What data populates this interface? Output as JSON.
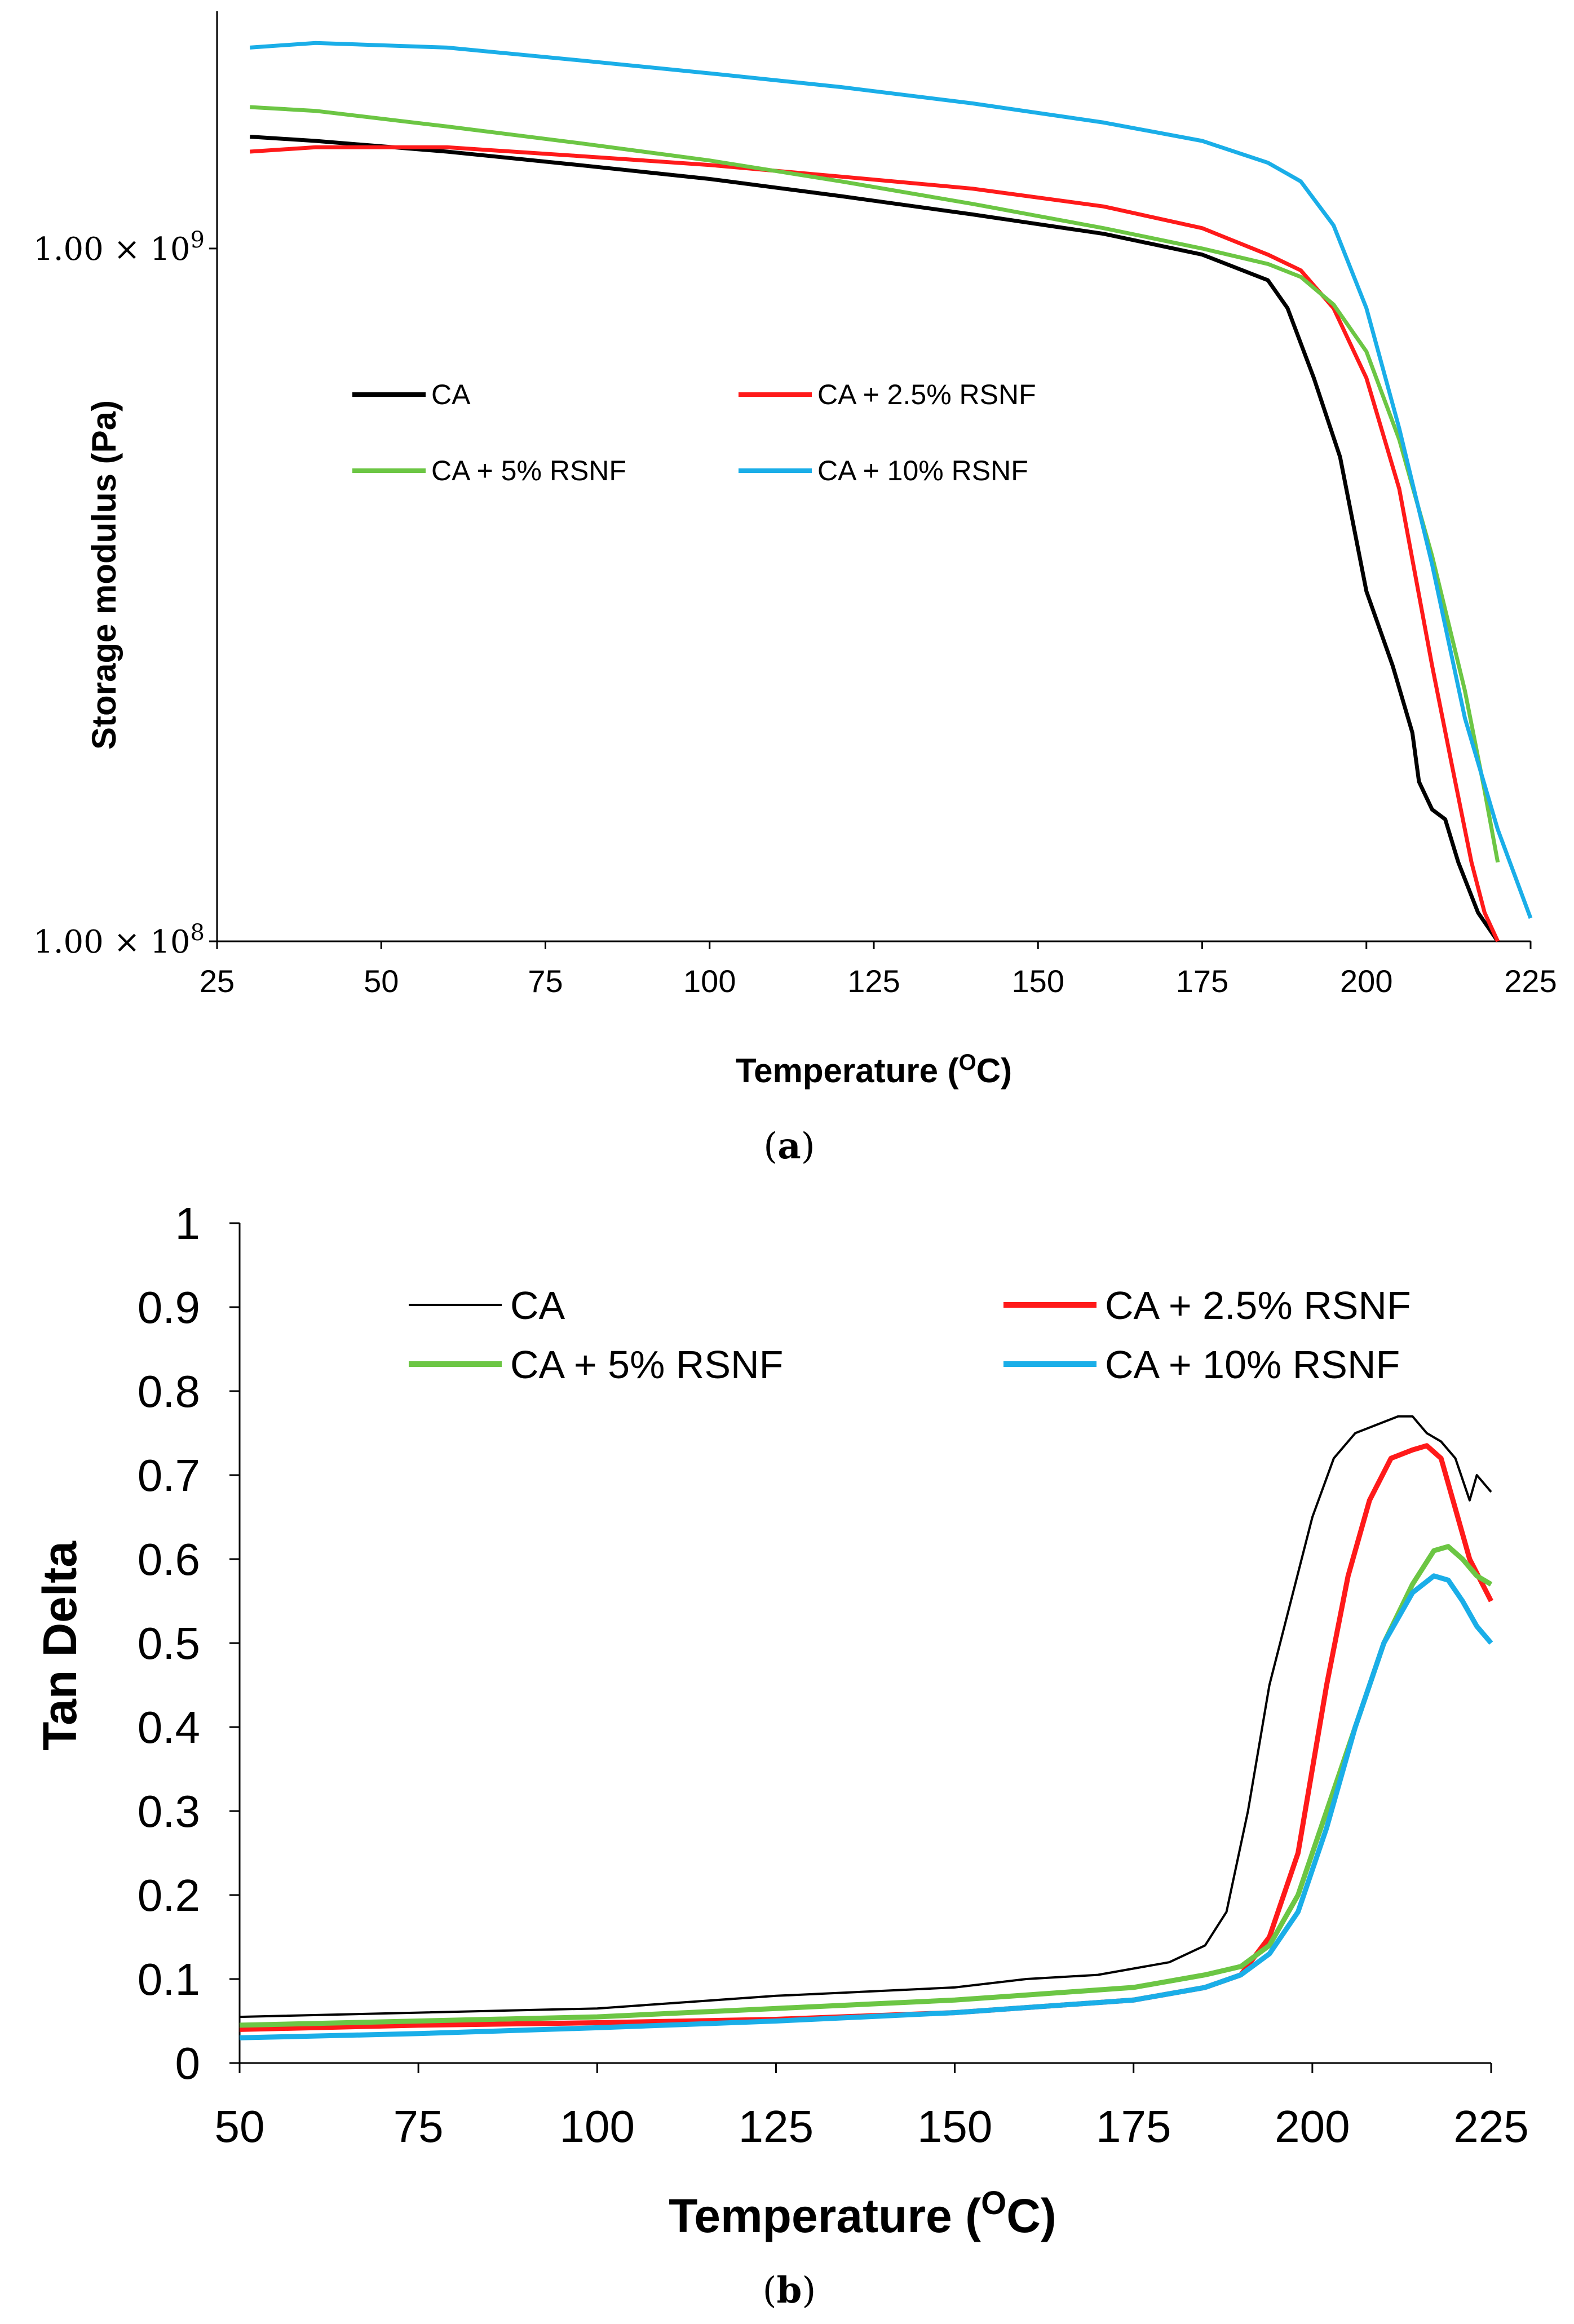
{
  "colors": {
    "CA": "#000000",
    "CA25": "#ff1a1a",
    "CA5": "#6cc644",
    "CA10": "#1aaee8"
  },
  "chart_data": [
    {
      "panel": "a",
      "caption": "(a)",
      "caption_letter": "a",
      "type": "line",
      "title": "",
      "xlabel": "Temperature (",
      "xlabel_sup": "O",
      "xlabel_unit": "C)",
      "ylabel": "Storage modulus (Pa)",
      "yscale": "log",
      "xlim": [
        25,
        225
      ],
      "ylim": [
        100000000.0,
        2200000000.0
      ],
      "xticks": [
        25,
        50,
        75,
        100,
        125,
        150,
        175,
        200,
        225
      ],
      "yticks": [
        {
          "value": 1000000000.0,
          "mantissa": "1.00",
          "times": "×",
          "base": "10",
          "exp": "9"
        },
        {
          "value": 100000000.0,
          "mantissa": "1.00",
          "times": "×",
          "base": "10",
          "exp": "8"
        }
      ],
      "legend": [
        "CA",
        "CA + 2.5% RSNF",
        "CA + 5% RSNF",
        "CA + 10% RSNF"
      ],
      "series": [
        {
          "name": "CA",
          "color": "#000000",
          "x": [
            30,
            40,
            60,
            80,
            100,
            120,
            140,
            160,
            175,
            185,
            188,
            192,
            196,
            200,
            204,
            207,
            208,
            210,
            212,
            214,
            217,
            220
          ],
          "y": [
            1450000000.0,
            1430000000.0,
            1380000000.0,
            1320000000.0,
            1260000000.0,
            1190000000.0,
            1120000000.0,
            1050000000.0,
            980000000.0,
            900000000.0,
            820000000.0,
            650000000.0,
            500000000.0,
            320000000.0,
            250000000.0,
            200000000.0,
            170000000.0,
            155000000.0,
            150000000.0,
            130000000.0,
            110000000.0,
            100000000.0
          ]
        },
        {
          "name": "CA + 2.5% RSNF",
          "color": "#ff1a1a",
          "x": [
            30,
            40,
            60,
            80,
            100,
            120,
            140,
            160,
            175,
            185,
            190,
            195,
            200,
            205,
            210,
            213,
            216,
            218,
            220
          ],
          "y": [
            1380000000.0,
            1400000000.0,
            1400000000.0,
            1360000000.0,
            1320000000.0,
            1270000000.0,
            1220000000.0,
            1150000000.0,
            1070000000.0,
            980000000.0,
            930000000.0,
            820000000.0,
            650000000.0,
            450000000.0,
            250000000.0,
            180000000.0,
            130000000.0,
            110000000.0,
            100000000.0
          ]
        },
        {
          "name": "CA + 5% RSNF",
          "color": "#6cc644",
          "x": [
            30,
            40,
            60,
            80,
            100,
            120,
            140,
            160,
            175,
            185,
            190,
            195,
            200,
            205,
            210,
            215,
            218,
            220
          ],
          "y": [
            1600000000.0,
            1580000000.0,
            1500000000.0,
            1420000000.0,
            1340000000.0,
            1250000000.0,
            1160000000.0,
            1070000000.0,
            1000000000.0,
            950000000.0,
            910000000.0,
            830000000.0,
            710000000.0,
            530000000.0,
            360000000.0,
            230000000.0,
            165000000.0,
            130000000.0
          ]
        },
        {
          "name": "CA + 10% RSNF",
          "color": "#1aaee8",
          "x": [
            30,
            40,
            60,
            80,
            100,
            120,
            140,
            160,
            175,
            185,
            190,
            195,
            200,
            205,
            210,
            215,
            220,
            225
          ],
          "y": [
            1950000000.0,
            1980000000.0,
            1950000000.0,
            1870000000.0,
            1790000000.0,
            1710000000.0,
            1620000000.0,
            1520000000.0,
            1430000000.0,
            1330000000.0,
            1250000000.0,
            1080000000.0,
            820000000.0,
            550000000.0,
            350000000.0,
            210000000.0,
            145000000.0,
            108000000.0
          ]
        }
      ]
    },
    {
      "panel": "b",
      "caption": "(b)",
      "caption_letter": "b",
      "type": "line",
      "title": "",
      "xlabel": "Temperature (",
      "xlabel_sup": "O",
      "xlabel_unit": "C)",
      "ylabel": "Tan Delta",
      "xlim": [
        50,
        225
      ],
      "ylim": [
        0,
        1
      ],
      "xticks": [
        50,
        75,
        100,
        125,
        150,
        175,
        200,
        225
      ],
      "yticks": [
        "0",
        "0.1",
        "0.2",
        "0.3",
        "0.4",
        "0.5",
        "0.6",
        "0.7",
        "0.8",
        "0.9",
        "1"
      ],
      "legend": [
        "CA",
        "CA + 2.5% RSNF",
        "CA + 5% RSNF",
        "CA + 10% RSNF"
      ],
      "series": [
        {
          "name": "CA",
          "color": "#000000",
          "x": [
            50,
            75,
            100,
            125,
            150,
            160,
            170,
            180,
            185,
            188,
            191,
            194,
            197,
            200,
            203,
            206,
            209,
            212,
            214,
            216,
            218,
            220,
            222,
            223,
            225
          ],
          "y": [
            0.055,
            0.06,
            0.065,
            0.08,
            0.09,
            0.1,
            0.105,
            0.12,
            0.14,
            0.18,
            0.3,
            0.45,
            0.55,
            0.65,
            0.72,
            0.75,
            0.76,
            0.77,
            0.77,
            0.75,
            0.74,
            0.72,
            0.67,
            0.7,
            0.68
          ]
        },
        {
          "name": "CA + 2.5% RSNF",
          "color": "#ff1a1a",
          "x": [
            50,
            75,
            100,
            125,
            150,
            175,
            185,
            190,
            194,
            198,
            202,
            205,
            208,
            211,
            214,
            216,
            218,
            220,
            222,
            225
          ],
          "y": [
            0.04,
            0.045,
            0.048,
            0.052,
            0.06,
            0.075,
            0.09,
            0.105,
            0.15,
            0.25,
            0.45,
            0.58,
            0.67,
            0.72,
            0.73,
            0.735,
            0.72,
            0.66,
            0.6,
            0.55
          ]
        },
        {
          "name": "CA + 5% RSNF",
          "color": "#6cc644",
          "x": [
            50,
            75,
            100,
            125,
            150,
            175,
            185,
            190,
            194,
            198,
            202,
            206,
            210,
            214,
            217,
            219,
            221,
            223,
            225
          ],
          "y": [
            0.045,
            0.05,
            0.055,
            0.065,
            0.075,
            0.09,
            0.105,
            0.115,
            0.14,
            0.2,
            0.3,
            0.4,
            0.5,
            0.57,
            0.61,
            0.615,
            0.6,
            0.58,
            0.57
          ]
        },
        {
          "name": "CA + 10% RSNF",
          "color": "#1aaee8",
          "x": [
            50,
            75,
            100,
            125,
            150,
            175,
            185,
            190,
            194,
            198,
            202,
            206,
            210,
            214,
            217,
            219,
            221,
            223,
            225
          ],
          "y": [
            0.03,
            0.035,
            0.042,
            0.05,
            0.06,
            0.075,
            0.09,
            0.105,
            0.13,
            0.18,
            0.28,
            0.4,
            0.5,
            0.56,
            0.58,
            0.575,
            0.55,
            0.52,
            0.5
          ]
        }
      ]
    }
  ]
}
